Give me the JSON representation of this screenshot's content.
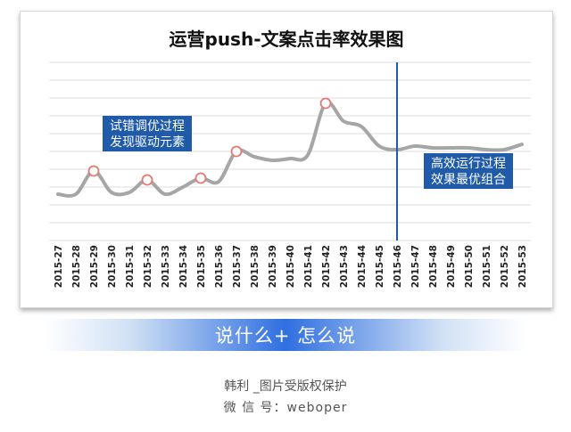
{
  "chart_data": {
    "type": "line",
    "title": "运营push-文案点击率效果图",
    "xlabel": "",
    "ylabel": "",
    "grid": true,
    "legend": "none",
    "ylim": [
      0,
      10
    ],
    "categories": [
      "2015-27",
      "2015-28",
      "2015-29",
      "2015-30",
      "2015-31",
      "2015-32",
      "2015-33",
      "2015-34",
      "2015-35",
      "2015-36",
      "2015-37",
      "2015-38",
      "2015-39",
      "2015-40",
      "2015-41",
      "2015-42",
      "2015-43",
      "2015-44",
      "2015-45",
      "2015-46",
      "2015-47",
      "2015-48",
      "2015-49",
      "2015-50",
      "2015-51",
      "2015-52",
      "2015-53"
    ],
    "series": [
      {
        "values": [
          2.6,
          2.6,
          3.9,
          2.7,
          2.7,
          3.4,
          2.6,
          3.0,
          3.5,
          3.3,
          5.0,
          4.7,
          4.5,
          4.6,
          4.8,
          7.7,
          6.7,
          6.4,
          5.3,
          5.1,
          5.3,
          5.2,
          5.2,
          5.2,
          5.1,
          5.1,
          5.4
        ],
        "color": "#a6a6a6"
      }
    ],
    "markers": [
      2,
      5,
      8,
      10,
      15
    ],
    "vline": {
      "category": "2015-46",
      "color": "#1f5ba8"
    },
    "annotations": [
      {
        "lines": [
          "试错调优过程",
          "发现驱动元素"
        ],
        "at_category": "2015-32",
        "at_value": 6.0
      },
      {
        "lines": [
          "高效运行过程",
          "效果最优组合"
        ],
        "at_category": "2015-50",
        "at_value": 3.9
      }
    ]
  },
  "colors": {
    "annotation_bg": "#1f5ba8",
    "marker": "#e07a72",
    "grid": "#dcdcdc"
  },
  "banner": {
    "text": "说什么+ 怎么说"
  },
  "credits": {
    "line1": "韩利 _图片受版权保护",
    "line2": "微 信 号：weboper"
  }
}
